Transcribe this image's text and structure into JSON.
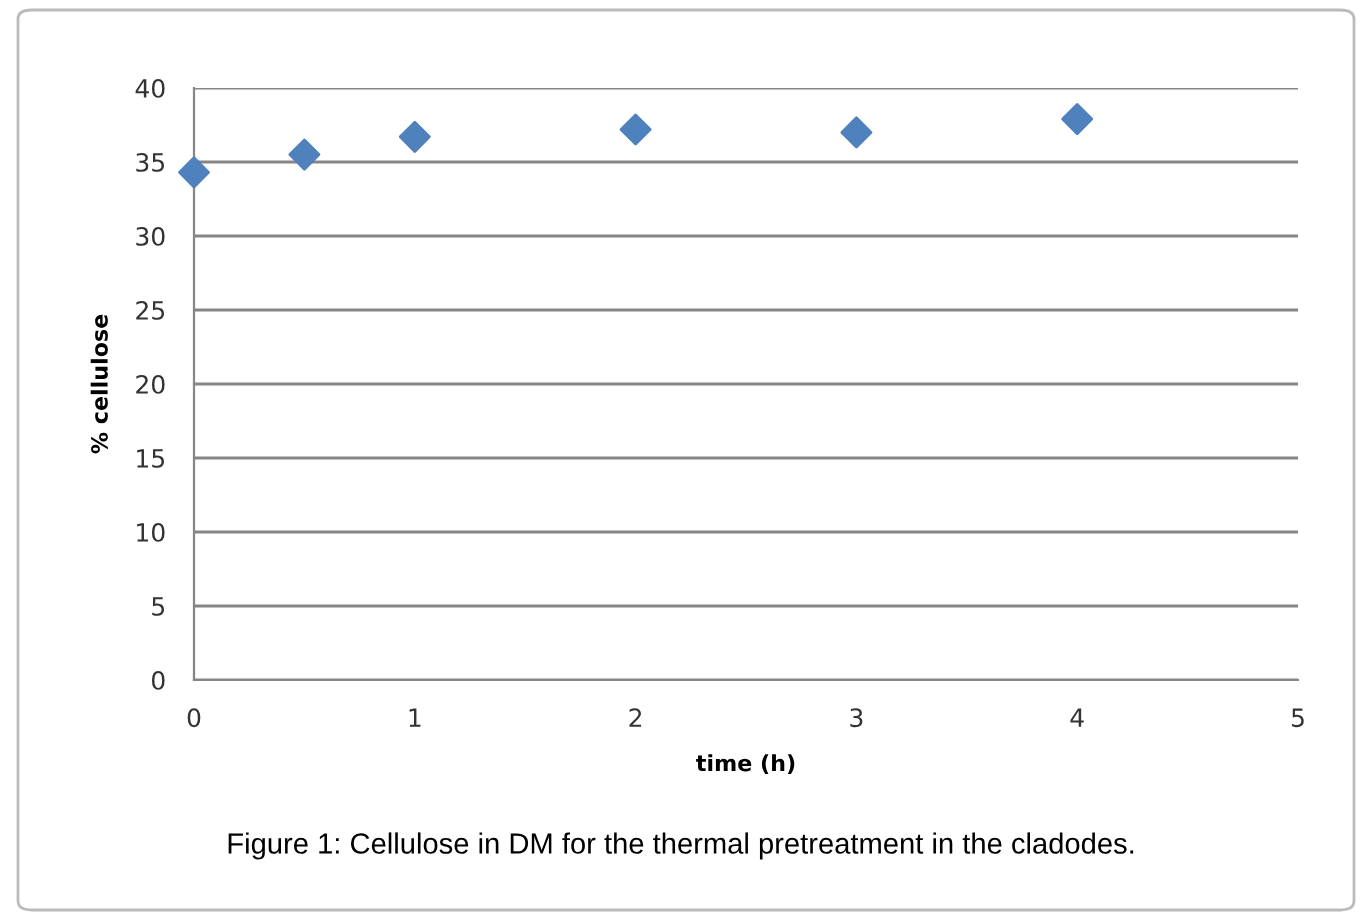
{
  "chart_data": {
    "type": "scatter",
    "xlabel": "time (h)",
    "ylabel": "% cellulose",
    "x": [
      0,
      0.5,
      1,
      2,
      3,
      4
    ],
    "series": [
      {
        "color": "#4f81bd",
        "values": [
          34.3,
          35.5,
          36.7,
          37.2,
          37.0,
          37.9
        ]
      }
    ],
    "xlim": [
      0,
      5
    ],
    "xticks": [
      0,
      1,
      2,
      3,
      4,
      5
    ],
    "ylim": [
      0,
      40
    ],
    "yticks": [
      0,
      5,
      10,
      15,
      20,
      25,
      30,
      35,
      40
    ],
    "grid": "y",
    "marker": "diamond",
    "legend": false,
    "annotations": [
      "Figure 1: Cellulose in DM for the thermal pretreatment in the cladodes."
    ]
  }
}
